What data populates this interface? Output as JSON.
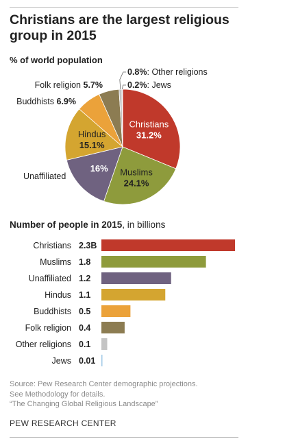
{
  "title": "Christians are the largest religious group in 2015",
  "pie_subtitle": "% of world population",
  "bar_subtitle_bold": "Number of people in 2015",
  "bar_subtitle_rest": ", in billions",
  "source_lines": [
    "Source: Pew Research Center demographic projections.",
    "See Methodology for details.",
    "“The Changing Global Religious Landscape”"
  ],
  "credit": "PEW RESEARCH CENTER",
  "chart_data": [
    {
      "type": "pie",
      "title": "% of world population",
      "slices": [
        {
          "label": "Christians",
          "value": 31.2,
          "value_label": "31.2%",
          "color": "#c0392b"
        },
        {
          "label": "Muslims",
          "value": 24.1,
          "value_label": "24.1%",
          "color": "#8e9b3c"
        },
        {
          "label": "Unaffiliated",
          "value": 16,
          "value_label": "16%",
          "color": "#6f6280"
        },
        {
          "label": "Hindus",
          "value": 15.1,
          "value_label": "15.1%",
          "color": "#d4a530"
        },
        {
          "label": "Buddhists",
          "value": 6.9,
          "value_label": "6.9%",
          "color": "#eba23a"
        },
        {
          "label": "Folk religion",
          "value": 5.7,
          "value_label": "5.7%",
          "color": "#8c7c52"
        },
        {
          "label": "Other religions",
          "value": 0.8,
          "value_label": "0.8%",
          "color": "#c4c4c4"
        },
        {
          "label": "Jews",
          "value": 0.2,
          "value_label": "0.2%",
          "color": "#9fc8e6"
        }
      ]
    },
    {
      "type": "bar",
      "orientation": "horizontal",
      "title": "Number of people in 2015, in billions",
      "categories": [
        "Christians",
        "Muslims",
        "Unaffiliated",
        "Hindus",
        "Buddhists",
        "Folk religion",
        "Other religions",
        "Jews"
      ],
      "values": [
        2.3,
        1.8,
        1.2,
        1.1,
        0.5,
        0.4,
        0.1,
        0.01
      ],
      "value_labels": [
        "2.3B",
        "1.8",
        "1.2",
        "1.1",
        "0.5",
        "0.4",
        "0.1",
        "0.01"
      ],
      "colors": [
        "#c0392b",
        "#8e9b3c",
        "#6f6280",
        "#d4a530",
        "#eba23a",
        "#8c7c52",
        "#c4c4c4",
        "#9fc8e6"
      ]
    }
  ]
}
